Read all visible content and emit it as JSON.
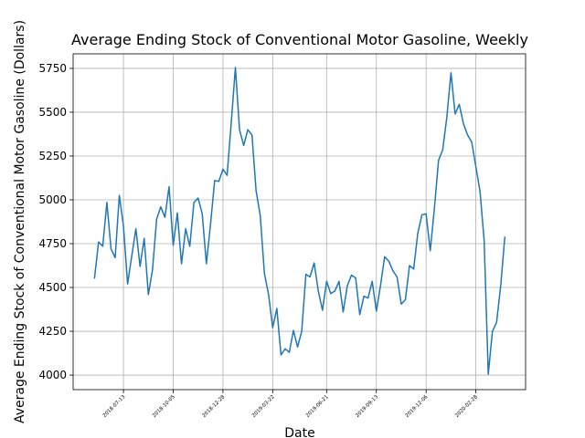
{
  "chart_data": {
    "type": "line",
    "title": "Average Ending Stock of Conventional Motor Gasoline, Weekly",
    "x_label": "Date",
    "y_label": "Average Ending Stock of Conventional Motor Gasoline (Dollars)",
    "x": [
      "2018-05-25",
      "2018-06-01",
      "2018-06-08",
      "2018-06-15",
      "2018-06-22",
      "2018-06-29",
      "2018-07-06",
      "2018-07-13",
      "2018-07-20",
      "2018-07-27",
      "2018-08-03",
      "2018-08-10",
      "2018-08-17",
      "2018-08-24",
      "2018-08-31",
      "2018-09-07",
      "2018-09-14",
      "2018-09-21",
      "2018-09-28",
      "2018-10-05",
      "2018-10-12",
      "2018-10-19",
      "2018-10-26",
      "2018-11-02",
      "2018-11-09",
      "2018-11-16",
      "2018-11-23",
      "2018-11-30",
      "2018-12-07",
      "2018-12-14",
      "2018-12-21",
      "2018-12-28",
      "2019-01-04",
      "2019-01-11",
      "2019-01-18",
      "2019-01-25",
      "2019-02-01",
      "2019-02-08",
      "2019-02-15",
      "2019-02-22",
      "2019-03-01",
      "2019-03-08",
      "2019-03-15",
      "2019-03-22",
      "2019-03-29",
      "2019-04-05",
      "2019-04-12",
      "2019-04-19",
      "2019-04-26",
      "2019-05-03",
      "2019-05-10",
      "2019-05-17",
      "2019-05-24",
      "2019-05-31",
      "2019-06-07",
      "2019-06-14",
      "2019-06-21",
      "2019-06-28",
      "2019-07-05",
      "2019-07-12",
      "2019-07-19",
      "2019-07-26",
      "2019-08-02",
      "2019-08-09",
      "2019-08-16",
      "2019-08-23",
      "2019-08-30",
      "2019-09-06",
      "2019-09-13",
      "2019-09-20",
      "2019-09-27",
      "2019-10-04",
      "2019-10-11",
      "2019-10-18",
      "2019-10-25",
      "2019-11-01",
      "2019-11-08",
      "2019-11-15",
      "2019-11-22",
      "2019-11-29",
      "2019-12-06",
      "2019-12-13",
      "2019-12-20",
      "2019-12-27",
      "2020-01-03",
      "2020-01-10",
      "2020-01-17",
      "2020-01-24",
      "2020-01-31",
      "2020-02-07",
      "2020-02-14",
      "2020-02-21",
      "2020-02-28",
      "2020-03-06",
      "2020-03-13",
      "2020-03-20",
      "2020-03-27",
      "2020-04-03",
      "2020-04-10",
      "2020-04-17"
    ],
    "series": [
      {
        "name": "Average Ending Stock",
        "color": "#1f77b4",
        "values": [
          4550,
          4760,
          4735,
          4985,
          4720,
          4670,
          5025,
          4850,
          4520,
          4680,
          4835,
          4620,
          4780,
          4460,
          4600,
          4890,
          4960,
          4900,
          5075,
          4740,
          4925,
          4635,
          4835,
          4735,
          4985,
          5010,
          4920,
          4635,
          4860,
          5110,
          5105,
          5175,
          5140,
          5440,
          5755,
          5400,
          5310,
          5400,
          5370,
          5050,
          4910,
          4580,
          4460,
          4270,
          4380,
          4115,
          4150,
          4130,
          4255,
          4160,
          4250,
          4575,
          4560,
          4640,
          4480,
          4370,
          4535,
          4465,
          4480,
          4535,
          4360,
          4510,
          4570,
          4555,
          4345,
          4450,
          4440,
          4535,
          4365,
          4510,
          4675,
          4650,
          4595,
          4560,
          4405,
          4430,
          4625,
          4605,
          4810,
          4915,
          4920,
          4710,
          4950,
          5225,
          5285,
          5470,
          5725,
          5490,
          5545,
          5435,
          5370,
          5330,
          5190,
          5050,
          4770,
          4005,
          4250,
          4300,
          4510,
          4790
        ]
      }
    ],
    "xlim": [
      "2018-04-19",
      "2020-05-22"
    ],
    "xticks": [
      "2018-07-13",
      "2018-10-05",
      "2018-12-28",
      "2019-03-22",
      "2019-06-21",
      "2019-09-13",
      "2019-12-06",
      "2020-02-28"
    ],
    "ylim": [
      3917,
      5833
    ],
    "yticks": [
      4000,
      4250,
      4500,
      4750,
      5000,
      5250,
      5500,
      5750
    ],
    "grid": true
  }
}
